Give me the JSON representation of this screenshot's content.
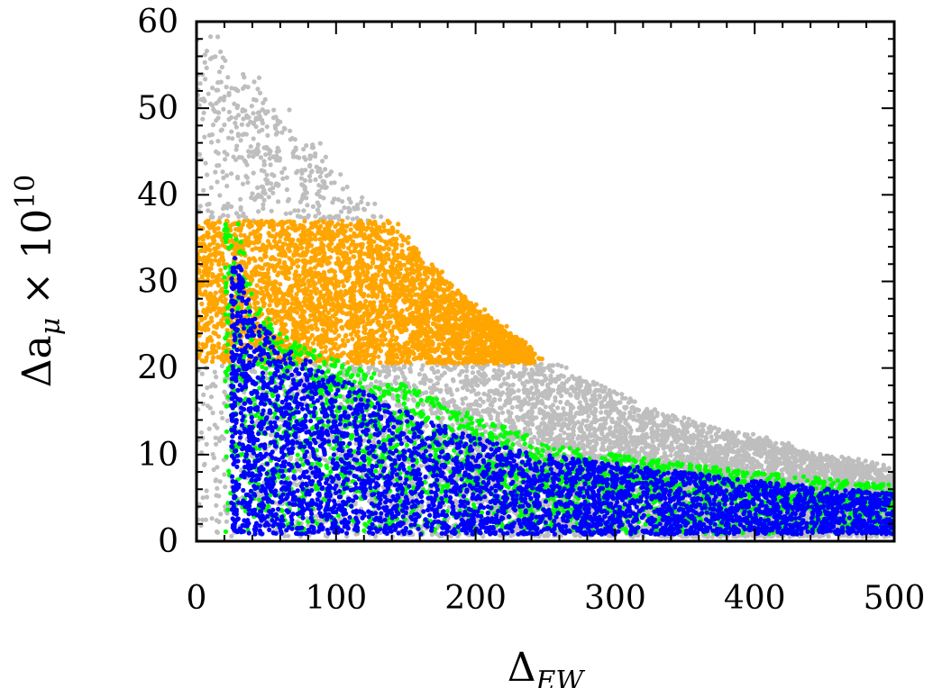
{
  "chart_data": {
    "type": "scatter",
    "xlabel": "Δ",
    "xlabel_sub": "EW",
    "ylabel": "Δa",
    "ylabel_sub": "μ",
    "ylabel_times": " × 10",
    "ylabel_sup": "10",
    "xlim": [
      0,
      500
    ],
    "ylim": [
      0,
      60
    ],
    "xticks": [
      0,
      100,
      200,
      300,
      400,
      500
    ],
    "yticks": [
      0,
      10,
      20,
      30,
      40,
      50,
      60
    ],
    "xtick_labels": [
      "0",
      "100",
      "200",
      "300",
      "400",
      "500"
    ],
    "ytick_labels": [
      "0",
      "10",
      "20",
      "30",
      "40",
      "50",
      "60"
    ],
    "grid": false,
    "series_colors": {
      "all": "#bebebe",
      "amu_band": "#ffa500",
      "green": "#00ff00",
      "blue": "#0000ff"
    },
    "amu_band_y": [
      20.5,
      37
    ],
    "envelope_all": [
      [
        0,
        60
      ],
      [
        50,
        52
      ],
      [
        100,
        43
      ],
      [
        150,
        35
      ],
      [
        200,
        27
      ],
      [
        250,
        21
      ],
      [
        300,
        17
      ],
      [
        350,
        14
      ],
      [
        400,
        12
      ],
      [
        450,
        10
      ],
      [
        500,
        8.5
      ]
    ],
    "envelope_green": [
      [
        30,
        37
      ],
      [
        40,
        28
      ],
      [
        60,
        24
      ],
      [
        100,
        21
      ],
      [
        150,
        18
      ],
      [
        200,
        14.5
      ],
      [
        250,
        11.5
      ],
      [
        300,
        10
      ],
      [
        400,
        8
      ],
      [
        500,
        6.5
      ]
    ],
    "envelope_blue": [
      [
        30,
        33
      ],
      [
        40,
        26
      ],
      [
        60,
        23
      ],
      [
        100,
        19
      ],
      [
        150,
        15
      ],
      [
        200,
        12
      ],
      [
        250,
        10
      ],
      [
        300,
        9
      ],
      [
        400,
        7
      ],
      [
        500,
        5.5
      ]
    ]
  }
}
